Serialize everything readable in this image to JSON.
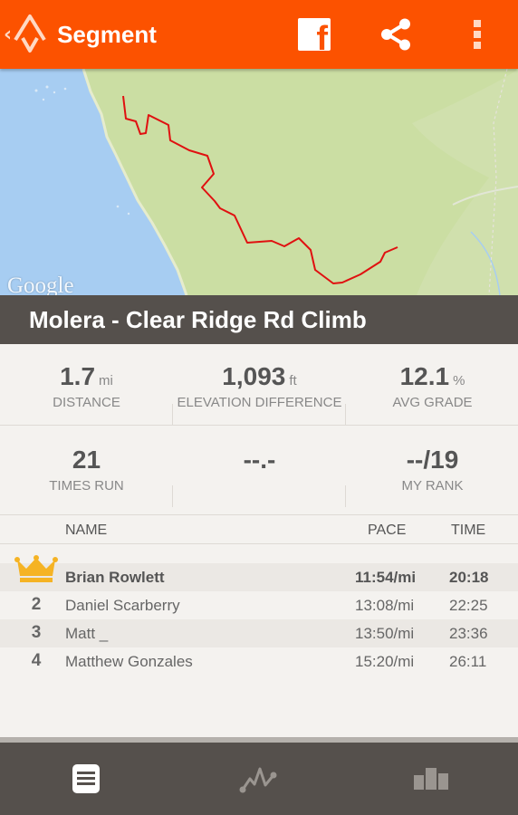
{
  "appbar": {
    "title": "Segment",
    "brand_color": "#fc5200"
  },
  "map": {
    "attribution": "Google"
  },
  "segment": {
    "name": "Molera - Clear Ridge Rd Climb"
  },
  "stats": {
    "distance": {
      "value": "1.7",
      "unit": "mi",
      "label": "DISTANCE"
    },
    "elevation": {
      "value": "1,093",
      "unit": "ft",
      "label": "ELEVATION DIFFERENCE"
    },
    "grade": {
      "value": "12.1",
      "unit": "%",
      "label": "AVG GRADE"
    },
    "times_run": {
      "value": "21",
      "label": "TIMES RUN"
    },
    "best": {
      "value": "--.-"
    },
    "rank": {
      "value": "--/19",
      "label": "MY RANK"
    }
  },
  "leaderboard": {
    "headers": {
      "name": "NAME",
      "pace": "PACE",
      "time": "TIME"
    },
    "rows": [
      {
        "rank": "",
        "name": "Brian Rowlett",
        "pace": "11:54/mi",
        "time": "20:18"
      },
      {
        "rank": "2",
        "name": "Daniel Scarberry",
        "pace": "13:08/mi",
        "time": "22:25"
      },
      {
        "rank": "3",
        "name": "Matt _",
        "pace": "13:50/mi",
        "time": "23:36"
      },
      {
        "rank": "4",
        "name": "Matthew Gonzales",
        "pace": "15:20/mi",
        "time": "26:11"
      }
    ]
  },
  "icons": {
    "up": "chevron-left-icon",
    "logo": "strava-logo-icon",
    "facebook": "facebook-icon",
    "share": "share-icon",
    "overflow": "overflow-menu-icon",
    "crown": "crown-icon",
    "tab_details": "document-icon",
    "tab_efforts": "activity-graph-icon",
    "tab_leaderboard": "podium-icon"
  }
}
